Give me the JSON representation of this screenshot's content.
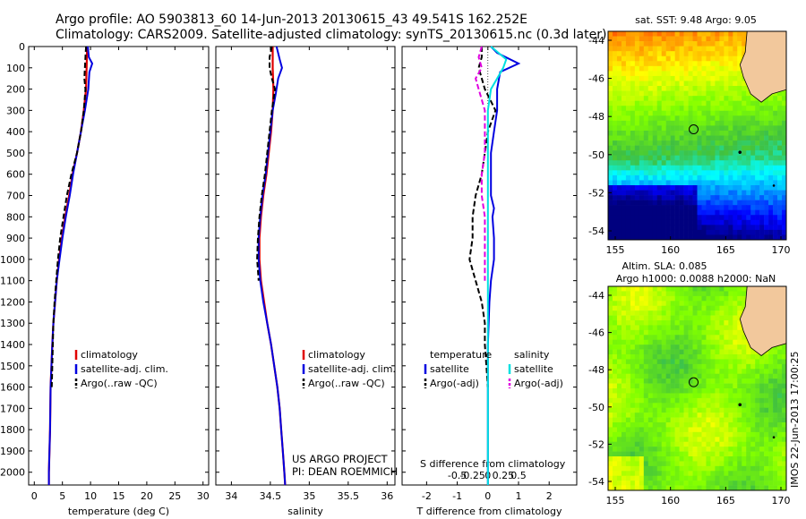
{
  "header": {
    "line1": "Argo profile: AO 5903813_60 14-Jun-2013 20130615_43 49.541S 162.252E",
    "line2": "Climatology: CARS2009. Satellite-adjusted climatology: synTS_20130615.nc (0.3d later)"
  },
  "credits": {
    "line1": "US ARGO PROJECT",
    "line2": "PI: DEAN ROEMMICH"
  },
  "timestamp": "IMOS 22-Jun-2013 17:00:25",
  "map_sst": {
    "title": "sat. SST: 9.48 Argo: 9.05",
    "lat_ticks": [
      "-44",
      "-46",
      "-48",
      "-50",
      "-52",
      "-54"
    ],
    "lon_ticks": [
      "155",
      "160",
      "165",
      "170"
    ]
  },
  "map_sla": {
    "title1": "Altim. SLA: 0.085",
    "title2": "Argo h1000: 0.0088 h2000: NaN",
    "lat_ticks": [
      "-44",
      "-46",
      "-48",
      "-50",
      "-52",
      "-54"
    ],
    "lon_ticks": [
      "155",
      "160",
      "165",
      "170"
    ]
  },
  "colors": {
    "climatology": "#e00000",
    "satellite": "#0000e0",
    "argo": "#000000",
    "sal_satellite": "#00e0e0",
    "sal_argo": "#e000e0"
  },
  "chart_data": [
    {
      "type": "line",
      "xlabel": "temperature (deg C)",
      "ylabel": "",
      "xlim": [
        -1,
        31
      ],
      "ylim": [
        2060,
        0
      ],
      "x_ticks": [
        "0",
        "5",
        "10",
        "15",
        "20",
        "25",
        "30"
      ],
      "y_ticks": [
        "0",
        "100",
        "200",
        "300",
        "400",
        "500",
        "600",
        "700",
        "800",
        "900",
        "1000",
        "1100",
        "1200",
        "1300",
        "1400",
        "1500",
        "1600",
        "1700",
        "1800",
        "1900",
        "2000"
      ],
      "legend": [
        "climatology",
        "satellite-adj. clim.",
        "Argo(..raw -QC)"
      ],
      "series": [
        {
          "name": "climatology",
          "depth": [
            0,
            100,
            200,
            300,
            400,
            500,
            600,
            700,
            800,
            900,
            1000,
            1100,
            1200,
            1300,
            1400,
            1600,
            1800,
            2000,
            2060
          ],
          "values": [
            9.4,
            9.3,
            9.2,
            8.8,
            8.3,
            7.6,
            6.8,
            6.2,
            5.5,
            4.9,
            4.4,
            4.0,
            3.7,
            3.4,
            3.2,
            2.9,
            2.8,
            2.6,
            2.6
          ]
        },
        {
          "name": "satellite-adj. clim.",
          "depth": [
            0,
            50,
            80,
            120,
            200,
            300,
            400,
            500,
            600,
            700,
            800,
            900,
            1000,
            1100,
            1200,
            1300,
            1400,
            1600,
            1800,
            2000,
            2060
          ],
          "values": [
            9.5,
            9.7,
            10.3,
            9.8,
            9.6,
            9.0,
            8.3,
            7.6,
            6.9,
            6.3,
            5.6,
            5.0,
            4.5,
            4.0,
            3.7,
            3.4,
            3.2,
            2.9,
            2.8,
            2.6,
            2.6
          ]
        },
        {
          "name": "Argo(..raw -QC)",
          "depth": [
            0,
            50,
            100,
            150,
            200,
            300,
            400,
            500,
            600,
            700,
            800,
            900,
            1000,
            1100,
            1200,
            1300,
            1400,
            1500,
            1600
          ],
          "values": [
            9.2,
            9.1,
            9.0,
            8.9,
            9.1,
            8.8,
            8.3,
            7.6,
            6.6,
            5.8,
            5.2,
            4.6,
            4.2,
            3.9,
            3.6,
            3.4,
            3.3,
            3.2,
            3.1
          ]
        }
      ]
    },
    {
      "type": "line",
      "xlabel": "salinity",
      "ylabel": "",
      "xlim": [
        33.8,
        36.1
      ],
      "ylim": [
        2060,
        0
      ],
      "x_ticks": [
        "34",
        "34.5",
        "35",
        "35.5",
        "36"
      ],
      "legend": [
        "climatology",
        "satellite-adj. clim.",
        "Argo(..raw -QC)"
      ],
      "series": [
        {
          "name": "climatology",
          "depth": [
            0,
            100,
            200,
            300,
            400,
            500,
            600,
            700,
            800,
            900,
            1000,
            1100,
            1200,
            1300,
            1400,
            1500,
            1600,
            1700,
            1800,
            1900,
            2000,
            2060
          ],
          "values": [
            34.53,
            34.53,
            34.54,
            34.53,
            34.51,
            34.48,
            34.45,
            34.41,
            34.38,
            34.36,
            34.36,
            34.38,
            34.42,
            34.46,
            34.51,
            34.55,
            34.59,
            34.62,
            34.64,
            34.66,
            34.68,
            34.69
          ]
        },
        {
          "name": "satellite-adj. clim.",
          "depth": [
            0,
            60,
            100,
            150,
            220,
            300,
            400,
            500,
            600,
            700,
            800,
            900,
            1000,
            1100,
            1200,
            1300,
            1400,
            1500,
            1600,
            1700,
            1800,
            1900,
            2000,
            2060
          ],
          "values": [
            34.58,
            34.62,
            34.65,
            34.6,
            34.57,
            34.53,
            34.5,
            34.47,
            34.44,
            34.4,
            34.37,
            34.35,
            34.35,
            34.37,
            34.41,
            34.46,
            34.51,
            34.55,
            34.59,
            34.62,
            34.64,
            34.66,
            34.68,
            34.69
          ]
        },
        {
          "name": "Argo(..raw -QC)",
          "depth": [
            0,
            50,
            100,
            150,
            200,
            300,
            400,
            500,
            600,
            700,
            800,
            900,
            1000,
            1050,
            1100
          ],
          "values": [
            34.52,
            34.49,
            34.49,
            34.52,
            34.56,
            34.52,
            34.49,
            34.46,
            34.43,
            34.39,
            34.36,
            34.34,
            34.33,
            34.34,
            34.35
          ]
        }
      ]
    },
    {
      "type": "line",
      "xlabel": "T difference from climatology",
      "xlabel_top": "S difference from climatology",
      "xlim": [
        -2.8,
        2.9
      ],
      "ylim": [
        2060,
        0
      ],
      "x_ticks": [
        "-2",
        "-1",
        "0",
        "1",
        "2"
      ],
      "x_ticks_top": [
        "-0.5",
        "-0.25",
        "0",
        "0.25",
        "0.5"
      ],
      "legend_title_t": "temperature",
      "legend_title_s": "salinity",
      "legend_t": [
        "satellite",
        "Argo(-adj)"
      ],
      "legend_s": [
        "satellite",
        "Argo(-adj)"
      ],
      "series": [
        {
          "name": "satellite",
          "depth": [
            0,
            30,
            80,
            120,
            160,
            200,
            300,
            400,
            500,
            600,
            700,
            760,
            800,
            900,
            1000,
            1100,
            1200,
            1400,
            1600,
            1800,
            2000,
            2060
          ],
          "values": [
            0.1,
            0.3,
            1.0,
            0.4,
            0.35,
            0.3,
            0.3,
            0.2,
            0.1,
            0.1,
            0.1,
            0.2,
            0.15,
            0.2,
            0.2,
            0.1,
            0.05,
            0.0,
            0.0,
            0.0,
            0.0,
            0.0
          ]
        },
        {
          "name": "Argo(-adj)",
          "depth": [
            0,
            50,
            100,
            200,
            300,
            400,
            500,
            600,
            700,
            800,
            900,
            1000,
            1100,
            1200,
            1300,
            1400,
            1500,
            1600
          ],
          "values": [
            -0.2,
            -0.2,
            -0.3,
            -0.1,
            0.25,
            0.0,
            -0.1,
            -0.2,
            -0.4,
            -0.5,
            -0.5,
            -0.6,
            -0.4,
            -0.2,
            -0.1,
            -0.1,
            -0.05,
            0.0
          ]
        },
        {
          "name": "satellite",
          "depth": [
            0,
            60,
            100,
            150,
            200,
            300,
            500,
            800,
            1000,
            1500,
            2000,
            2060
          ],
          "values": [
            0.05,
            0.3,
            0.25,
            0.15,
            0.05,
            0.0,
            0.0,
            0.0,
            0.0,
            0.0,
            0.0,
            0.0
          ]
        },
        {
          "name": "Argo(-adj)",
          "depth": [
            0,
            50,
            100,
            150,
            200,
            300,
            400,
            500,
            600,
            700,
            800,
            1000,
            1100
          ],
          "values": [
            -0.1,
            -0.15,
            -0.1,
            -0.2,
            -0.15,
            -0.05,
            -0.05,
            -0.05,
            -0.1,
            -0.1,
            -0.05,
            -0.05,
            -0.05
          ]
        }
      ]
    }
  ]
}
